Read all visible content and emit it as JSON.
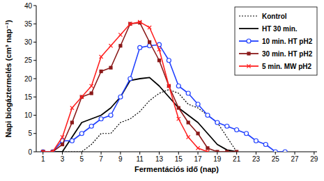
{
  "chart_data": {
    "type": "line",
    "x_label": "Fermentációs idő (nap)",
    "y_label": "Napi biogáztermelés (cm³ nap⁻¹)",
    "x": [
      1,
      2,
      3,
      4,
      5,
      6,
      7,
      8,
      9,
      10,
      11,
      12,
      13,
      14,
      15,
      16,
      17,
      18,
      19,
      20,
      21,
      22,
      23,
      24,
      25,
      26,
      27,
      28
    ],
    "xlim": [
      0.3,
      29.3
    ],
    "xticks": [
      1,
      3,
      5,
      7,
      9,
      11,
      13,
      15,
      17,
      19,
      21,
      23,
      25,
      27,
      29
    ],
    "ylim": [
      0,
      40
    ],
    "yticks": [
      0,
      5,
      10,
      15,
      20,
      25,
      30,
      35,
      40
    ],
    "grid": false,
    "legend": "top-right",
    "series": [
      {
        "name": "Kontrol",
        "color": "#000000",
        "line_style": "dotted",
        "marker": "none",
        "values": [
          0,
          0,
          0,
          0,
          0,
          2,
          5,
          5,
          8,
          9,
          11,
          14,
          16,
          17,
          16,
          13,
          12,
          10,
          8,
          4,
          0,
          null,
          null,
          null,
          null,
          null,
          null,
          null
        ]
      },
      {
        "name": "HT 30 min.",
        "color": "#000000",
        "line_style": "solid",
        "marker": "none",
        "values": [
          0,
          0,
          0,
          4,
          8,
          9,
          10,
          12,
          15,
          19.5,
          20,
          20.3,
          18,
          15,
          12,
          10,
          8,
          5,
          2,
          0.5,
          0,
          null,
          null,
          null,
          null,
          null,
          null,
          null
        ]
      },
      {
        "name": "10 min. HT pH2",
        "color": "#2040ff",
        "line_style": "solid",
        "marker": "circle",
        "values": [
          0,
          0,
          3,
          3,
          5,
          7,
          9,
          10,
          15,
          20,
          28.5,
          29,
          29.3,
          25,
          18,
          16,
          13,
          10,
          8,
          7,
          6,
          5,
          3,
          2,
          0,
          0,
          null,
          null
        ]
      },
      {
        "name": "30 min. HT pH2",
        "color": "#8b1a1a",
        "line_style": "solid",
        "marker": "square",
        "values": [
          0,
          0,
          2,
          8,
          15,
          16,
          22,
          23,
          29,
          35,
          35.3,
          30,
          25,
          18,
          12,
          8,
          5,
          1,
          0,
          0,
          0,
          null,
          null,
          null,
          null,
          null,
          null,
          null
        ]
      },
      {
        "name": "5 min. MW pH2",
        "color": "#ff2020",
        "line_style": "solid",
        "marker": "x",
        "values": [
          0,
          0,
          4,
          12,
          15,
          18,
          26,
          29,
          32,
          35,
          35.5,
          34,
          28,
          18,
          9,
          4,
          1,
          0,
          null,
          null,
          null,
          null,
          null,
          null,
          null,
          null,
          null,
          null
        ]
      }
    ]
  }
}
